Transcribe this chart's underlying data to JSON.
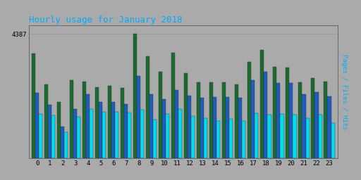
{
  "title": "Hourly usage for January 2018",
  "ylabel_right": "Pages / Files / Hits",
  "hours": [
    0,
    1,
    2,
    3,
    4,
    5,
    6,
    7,
    8,
    9,
    10,
    11,
    12,
    13,
    14,
    15,
    16,
    17,
    18,
    19,
    20,
    21,
    22,
    23
  ],
  "hits": [
    3700,
    2600,
    2000,
    2750,
    2700,
    2520,
    2550,
    2480,
    4387,
    3600,
    3050,
    3720,
    3000,
    2680,
    2680,
    2680,
    2620,
    3400,
    3820,
    3220,
    3200,
    2680,
    2830,
    2700
  ],
  "files": [
    2300,
    1900,
    1120,
    1750,
    2250,
    2000,
    2000,
    1920,
    2900,
    2250,
    2100,
    2400,
    2200,
    2150,
    2160,
    2160,
    2130,
    2750,
    3050,
    2650,
    2660,
    2250,
    2340,
    2180
  ],
  "pages": [
    1580,
    1530,
    920,
    1480,
    1750,
    1640,
    1650,
    1620,
    1720,
    1360,
    1580,
    1750,
    1500,
    1420,
    1320,
    1400,
    1320,
    1590,
    1540,
    1560,
    1540,
    1420,
    1540,
    1240
  ],
  "color_hits": "#1a6b30",
  "color_files": "#1e5cbf",
  "color_pages": "#00ddee",
  "bg_color": "#aaaaaa",
  "title_color": "#00aaff",
  "title_fontsize": 9,
  "grid_color": "#999999",
  "bar_width": 0.28,
  "ytick_label": "4387"
}
